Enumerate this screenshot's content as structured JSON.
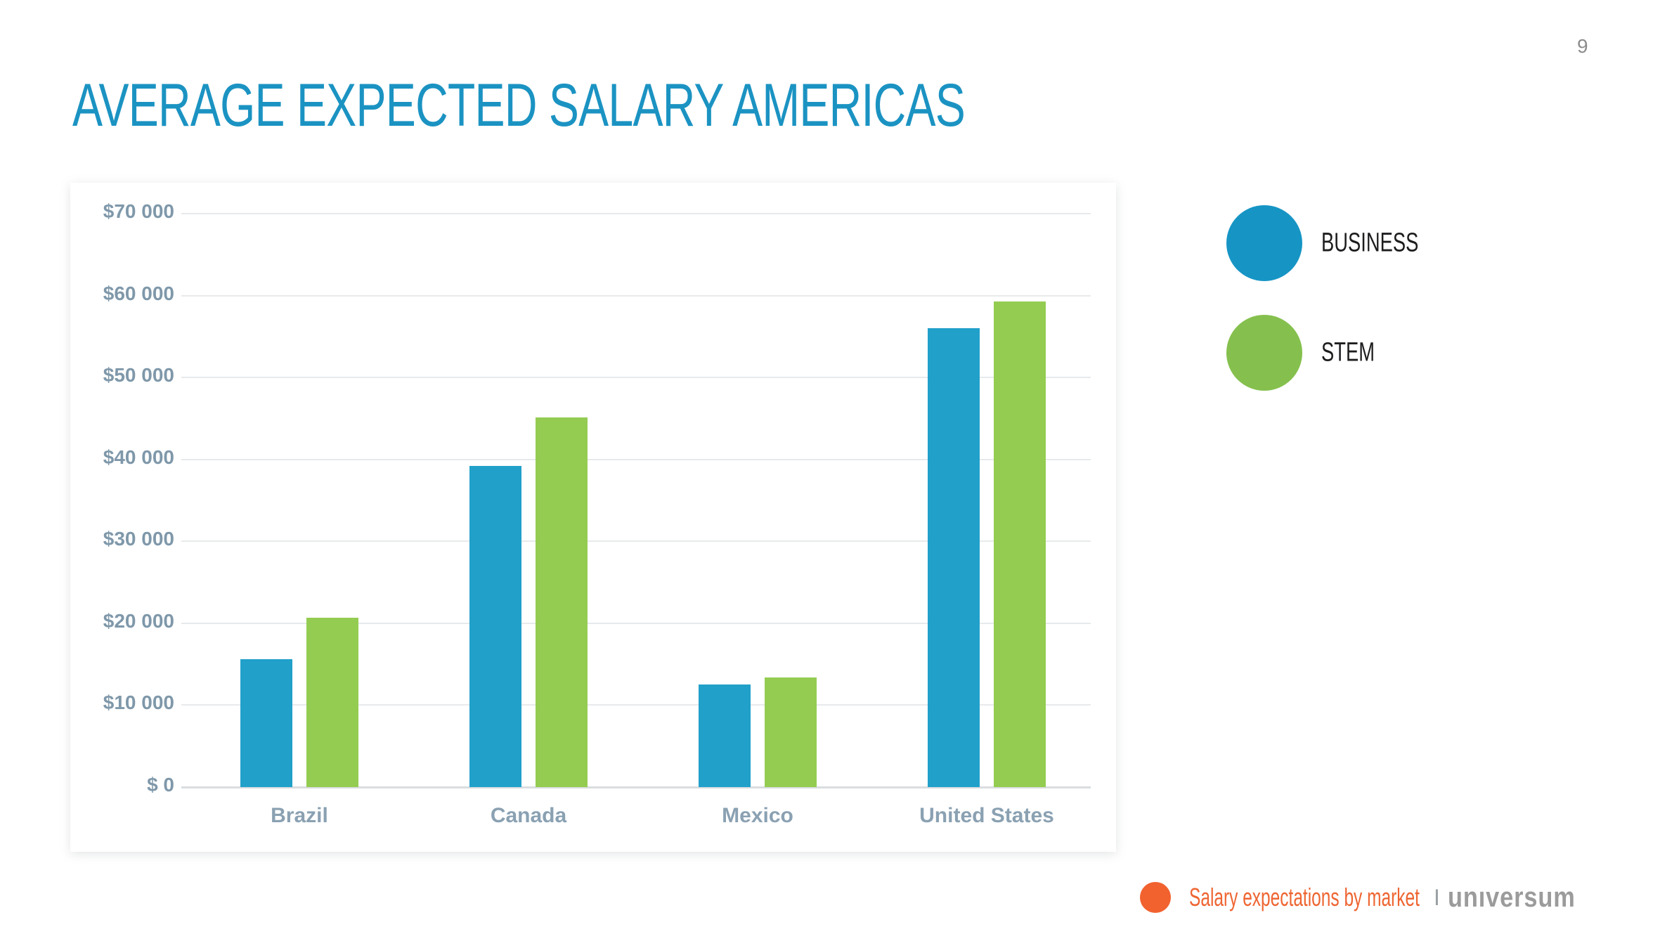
{
  "header": {
    "title": "AVERAGE EXPECTED SALARY AMERICAS",
    "title_color": "#1b93c2",
    "page_number": "9"
  },
  "chart_data": {
    "type": "bar",
    "title": "AVERAGE EXPECTED SALARY AMERICAS",
    "categories": [
      "Brazil",
      "Canada",
      "Mexico",
      "United States"
    ],
    "series": [
      {
        "name": "BUSINESS",
        "color": "#21a0ca",
        "legend_color": "#1695c5",
        "values": [
          15600,
          39200,
          12500,
          56000
        ]
      },
      {
        "name": "STEM",
        "color": "#94cc52",
        "legend_color": "#85c04e",
        "values": [
          20700,
          45100,
          13400,
          59300
        ]
      }
    ],
    "xlabel": "",
    "ylabel": "",
    "ylim": [
      0,
      70000
    ],
    "grid": true,
    "legend_position": "right",
    "y_ticks": [
      {
        "label": "$70 000",
        "value": 70000
      },
      {
        "label": "$60 000",
        "value": 60000
      },
      {
        "label": "$50 000",
        "value": 50000
      },
      {
        "label": "$40 000",
        "value": 40000
      },
      {
        "label": "$30 000",
        "value": 30000
      },
      {
        "label": "$20 000",
        "value": 20000
      },
      {
        "label": "$10 000",
        "value": 10000
      },
      {
        "label": "$ 0",
        "value": 0
      }
    ],
    "axis_label_color": "#7f98aa",
    "category_label_color": "#8aa1b2",
    "gridline_color": "#e7eaec"
  },
  "footer": {
    "tagline": "Salary expectations by market",
    "separator": "I",
    "brand": "unıversum",
    "accent_color": "#f1622f",
    "tagline_color": "#ee6532",
    "separator_color": "#9aa0a4",
    "brand_color": "#9b9b9b"
  }
}
